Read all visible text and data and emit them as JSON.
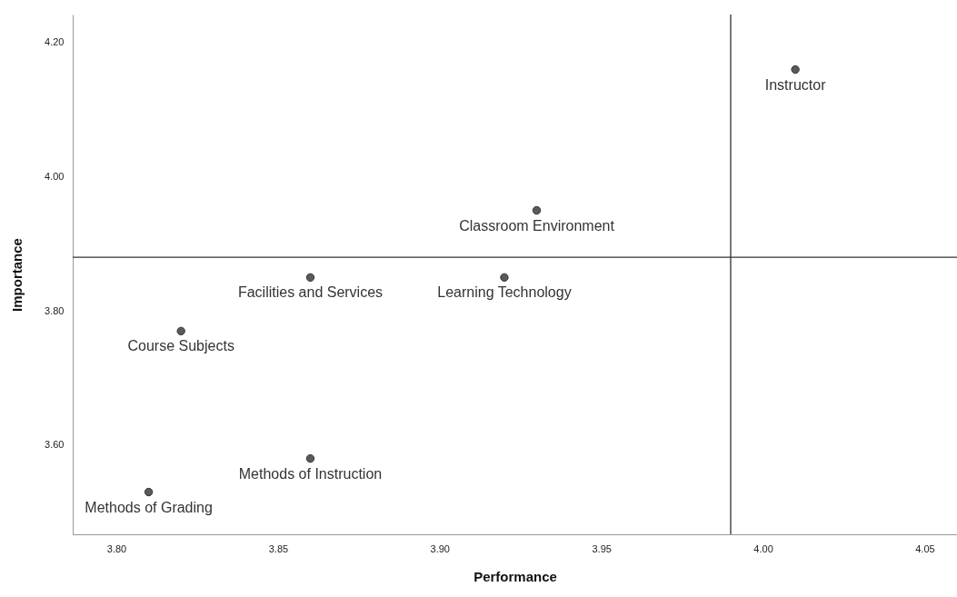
{
  "chart_data": {
    "type": "scatter",
    "xlabel": "Performance",
    "ylabel": "Importance",
    "x": [
      4.01,
      3.93,
      3.92,
      3.86,
      3.82,
      3.86,
      3.81
    ],
    "values": [
      4.16,
      3.95,
      3.85,
      3.85,
      3.77,
      3.58,
      3.53
    ],
    "color": "#5a5a5a",
    "marker": "circle",
    "grid": false,
    "xlim": [
      3.7865,
      4.06
    ],
    "ylim": [
      3.467,
      4.242
    ],
    "xticks": [
      {
        "value": 3.8,
        "label": "3.80"
      },
      {
        "value": 3.85,
        "label": "3.85"
      },
      {
        "value": 3.9,
        "label": "3.90"
      },
      {
        "value": 3.95,
        "label": "3.95"
      },
      {
        "value": 4.0,
        "label": "4.00"
      },
      {
        "value": 4.05,
        "label": "4.05"
      }
    ],
    "yticks": [
      {
        "value": 3.6,
        "label": "3.60"
      },
      {
        "value": 3.8,
        "label": "3.80"
      },
      {
        "value": 4.0,
        "label": "4.00"
      },
      {
        "value": 4.2,
        "label": "4.20"
      }
    ],
    "ref_lines": [
      {
        "axis": "x",
        "value": 3.99,
        "color": "#333333"
      },
      {
        "axis": "y",
        "value": 3.88,
        "color": "#333333"
      }
    ],
    "annotations": [
      {
        "text": "Instructor",
        "x": 4.01,
        "y": 4.16
      },
      {
        "text": "Classroom Environment",
        "x": 3.93,
        "y": 3.95
      },
      {
        "text": "Learning Technology",
        "x": 3.92,
        "y": 3.85
      },
      {
        "text": "Facilities and Services",
        "x": 3.86,
        "y": 3.85
      },
      {
        "text": "Course Subjects",
        "x": 3.82,
        "y": 3.77
      },
      {
        "text": "Methods of Instruction",
        "x": 3.86,
        "y": 3.58
      },
      {
        "text": "Methods of Grading",
        "x": 3.81,
        "y": 3.53
      }
    ]
  }
}
